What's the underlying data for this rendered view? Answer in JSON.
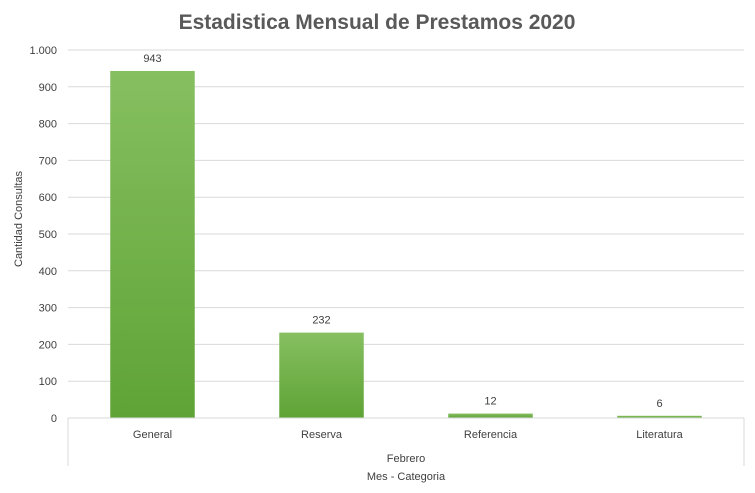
{
  "chart_data": {
    "type": "bar",
    "title": "Estadistica Mensual de Prestamos 2020",
    "ylabel": "Cantidad Consultas",
    "xlabel": "Mes - Categoria",
    "group_label": "Febrero",
    "categories": [
      "General",
      "Reserva",
      "Referencia",
      "Literatura"
    ],
    "values": [
      943,
      232,
      12,
      6
    ],
    "data_labels": [
      "943",
      "232",
      "12",
      "6"
    ],
    "ylim": [
      0,
      1000
    ],
    "yticks": [
      0,
      100,
      200,
      300,
      400,
      500,
      600,
      700,
      800,
      900,
      1000
    ],
    "ytick_labels": [
      "0",
      "100",
      "200",
      "300",
      "400",
      "500",
      "600",
      "700",
      "800",
      "900",
      "1.000"
    ],
    "grid": true,
    "legend": "none",
    "colors": {
      "bar_top": "#86bf60",
      "bar_bottom": "#5fa336",
      "grid": "#d9d9d9",
      "text": "#404040",
      "title": "#595959"
    }
  }
}
